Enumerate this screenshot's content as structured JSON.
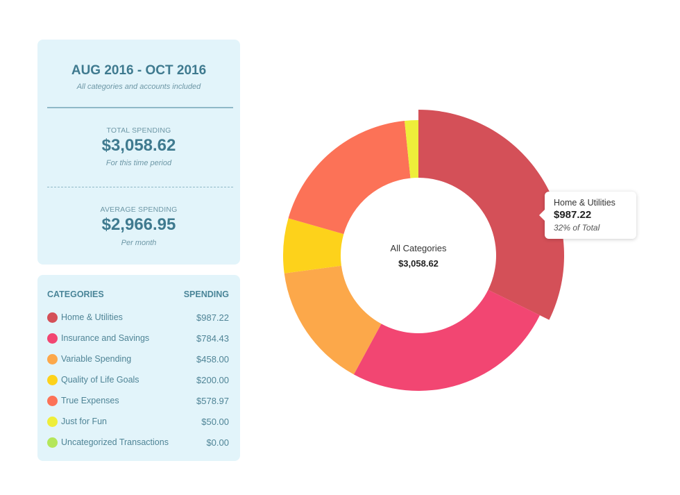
{
  "summary": {
    "date_range": "AUG 2016 - OCT 2016",
    "scope_note": "All categories and accounts included",
    "total_label": "TOTAL SPENDING",
    "total_value": "$3,058.62",
    "total_note": "For this time period",
    "average_label": "AVERAGE SPENDING",
    "average_value": "$2,966.95",
    "average_note": "Per month"
  },
  "categories_table": {
    "col_category": "CATEGORIES",
    "col_spending": "SPENDING",
    "rows": [
      {
        "name": "Home & Utilities",
        "amount": "$987.22",
        "color": "#d45058"
      },
      {
        "name": "Insurance and Savings",
        "amount": "$784.43",
        "color": "#f24672"
      },
      {
        "name": "Variable Spending",
        "amount": "$458.00",
        "color": "#fca84a"
      },
      {
        "name": "Quality of Life Goals",
        "amount": "$200.00",
        "color": "#fdd21b"
      },
      {
        "name": "True Expenses",
        "amount": "$578.97",
        "color": "#fc7257"
      },
      {
        "name": "Just for Fun",
        "amount": "$50.00",
        "color": "#eeee3a"
      },
      {
        "name": "Uncategorized Transactions",
        "amount": "$0.00",
        "color": "#b4e65a"
      }
    ]
  },
  "chart_data": {
    "type": "pie",
    "subtype": "donut",
    "title": "All Categories",
    "center_value": "$3,058.62",
    "categories": [
      "Home & Utilities",
      "Insurance and Savings",
      "Variable Spending",
      "Quality of Life Goals",
      "True Expenses",
      "Just for Fun",
      "Uncategorized Transactions"
    ],
    "values": [
      987.22,
      784.43,
      458.0,
      200.0,
      578.97,
      50.0,
      0.0
    ],
    "colors": [
      "#d45058",
      "#f24672",
      "#fca84a",
      "#fdd21b",
      "#fc7257",
      "#eeee3a",
      "#b4e65a"
    ],
    "highlighted": "Home & Utilities"
  },
  "tooltip": {
    "category": "Home & Utilities",
    "amount": "$987.22",
    "share": "32% of Total"
  }
}
